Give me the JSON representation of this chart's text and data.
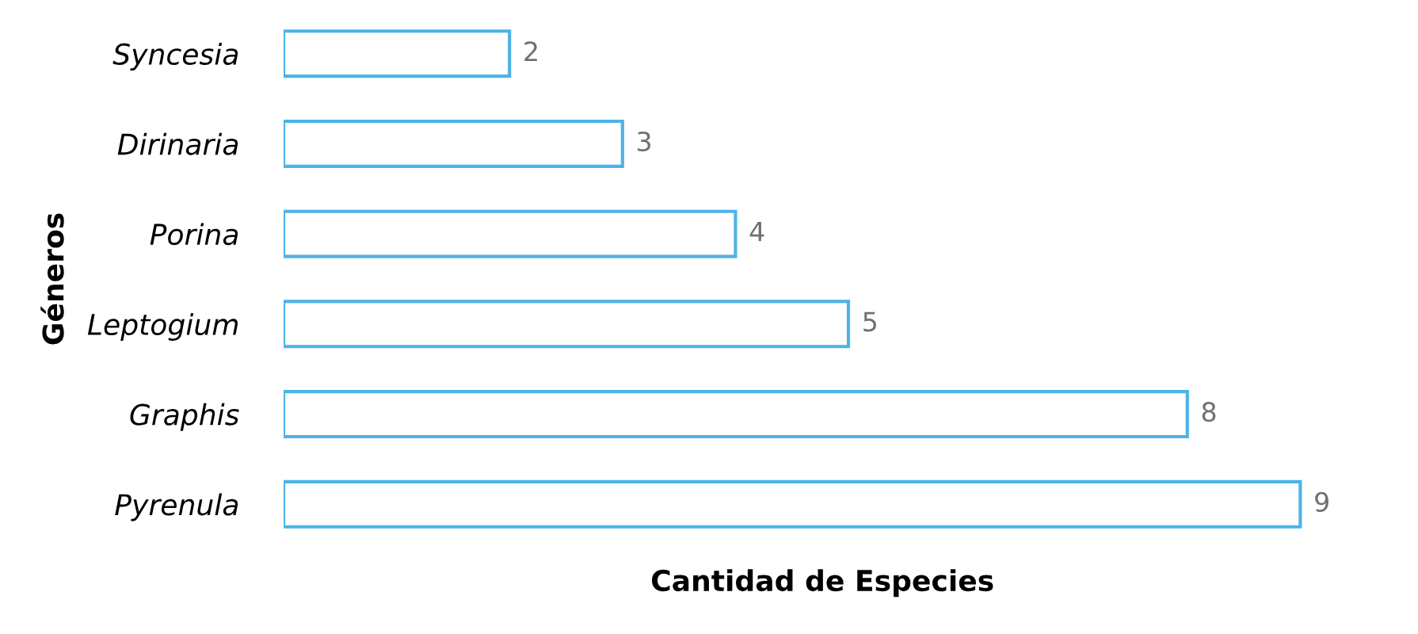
{
  "chart_data": {
    "type": "bar",
    "orientation": "horizontal",
    "xlabel": "Cantidad de Especies",
    "ylabel": "Géneros",
    "categories": [
      "Syncesia",
      "Dirinaria",
      "Porina",
      "Leptogium",
      "Graphis",
      "Pyrenula"
    ],
    "values": [
      2,
      3,
      4,
      5,
      8,
      9
    ],
    "color": "#4db3e6",
    "data_labels": true,
    "grid": false,
    "legend": false
  }
}
